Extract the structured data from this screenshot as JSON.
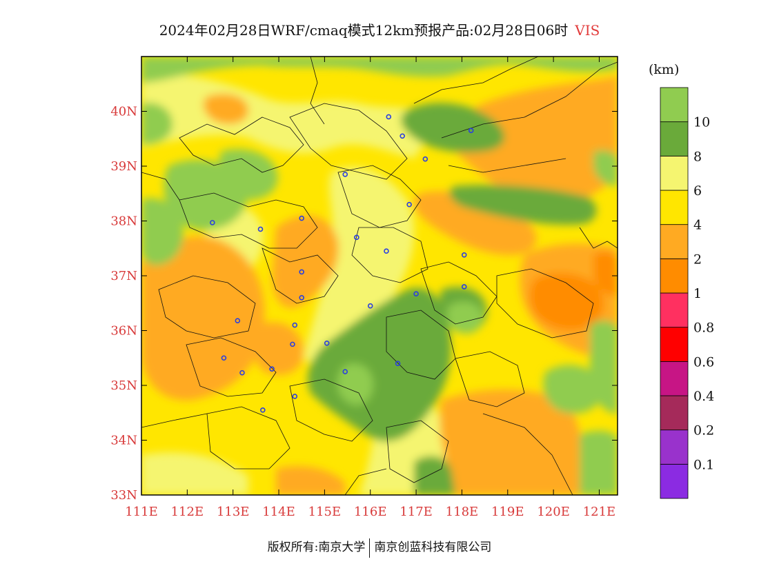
{
  "title": {
    "main": "2024年02月28日WRF/cmaq模式12km预报产品:02月28日06时",
    "variable": "VIS"
  },
  "colorbar": {
    "unit": "(km)",
    "bins": [
      {
        "color": "#8b2be2",
        "label": "0.1"
      },
      {
        "color": "#9932cc",
        "label": "0.2"
      },
      {
        "color": "#a52a5a",
        "label": "0.4"
      },
      {
        "color": "#c71585",
        "label": "0.6"
      },
      {
        "color": "#ff0000",
        "label": "0.8"
      },
      {
        "color": "#ff3060",
        "label": "1"
      },
      {
        "color": "#ff8c00",
        "label": "2"
      },
      {
        "color": "#ffaa22",
        "label": "4"
      },
      {
        "color": "#ffe600",
        "label": "6"
      },
      {
        "color": "#f5f570",
        "label": "8"
      },
      {
        "color": "#6aaa3a",
        "label": "10"
      },
      {
        "color": "#90cc50",
        "label": ""
      }
    ]
  },
  "axes": {
    "lat_labels": [
      "40N",
      "39N",
      "38N",
      "37N",
      "36N",
      "35N",
      "34N",
      "33N"
    ],
    "lon_labels": [
      "111E",
      "112E",
      "113E",
      "114E",
      "115E",
      "116E",
      "117E",
      "118E",
      "119E",
      "120E",
      "121E"
    ]
  },
  "map": {
    "lat_min": 33,
    "lat_max": 41,
    "lon_min": 111,
    "lon_max": 121.4,
    "background": "#ffe600",
    "city_marker_color": "#2a3fe0",
    "cities": [
      [
        116.4,
        39.9
      ],
      [
        116.7,
        39.55
      ],
      [
        118.2,
        39.65
      ],
      [
        117.2,
        39.13
      ],
      [
        115.45,
        38.85
      ],
      [
        116.85,
        38.3
      ],
      [
        112.55,
        37.97
      ],
      [
        113.6,
        37.85
      ],
      [
        114.5,
        38.05
      ],
      [
        115.7,
        37.7
      ],
      [
        116.35,
        37.45
      ],
      [
        118.05,
        37.38
      ],
      [
        114.5,
        37.07
      ],
      [
        114.5,
        36.6
      ],
      [
        117.0,
        36.67
      ],
      [
        118.05,
        36.8
      ],
      [
        116.0,
        36.45
      ],
      [
        113.1,
        36.18
      ],
      [
        114.35,
        36.1
      ],
      [
        114.3,
        35.75
      ],
      [
        115.05,
        35.77
      ],
      [
        112.8,
        35.5
      ],
      [
        113.2,
        35.23
      ],
      [
        113.85,
        35.3
      ],
      [
        115.45,
        35.25
      ],
      [
        116.6,
        35.4
      ],
      [
        114.35,
        34.8
      ],
      [
        113.65,
        34.55
      ]
    ]
  },
  "footer": {
    "left": "版权所有:南京大学",
    "right": "南京创蓝科技有限公司"
  }
}
